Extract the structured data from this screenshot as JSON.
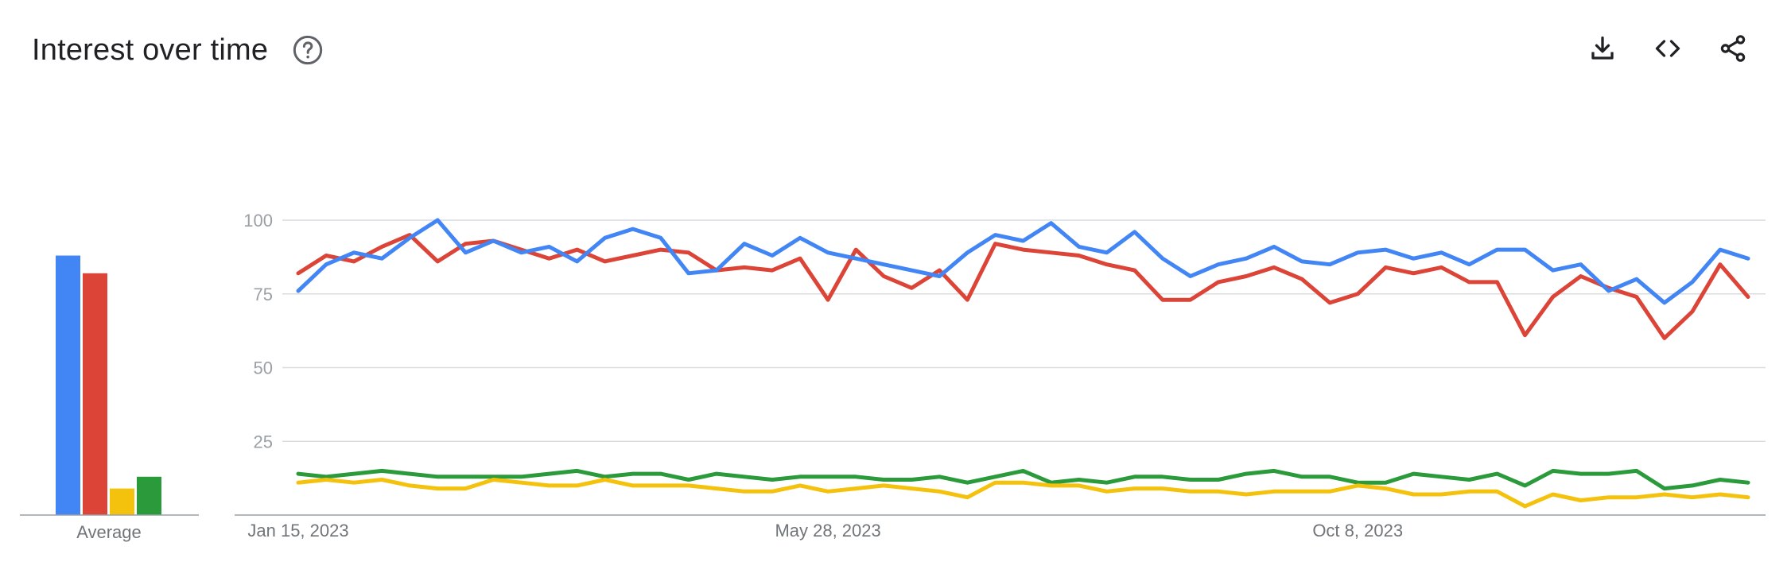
{
  "header": {
    "title": "Interest over time",
    "help_icon": "help-circle-icon"
  },
  "toolbar": {
    "icons": [
      "download-icon",
      "embed-code-icon",
      "share-icon"
    ]
  },
  "colors": {
    "blue": "#4285F4",
    "red": "#DB4437",
    "yellow": "#F4C20D",
    "green": "#2A9A3A",
    "grid": "#dadce0",
    "axis_text": "#9aa0a6",
    "label_text": "#70757a"
  },
  "chart_data": [
    {
      "type": "bar",
      "categories": [
        "Average"
      ],
      "series": [
        {
          "color": "#4285F4",
          "values": [
            88
          ]
        },
        {
          "color": "#DB4437",
          "values": [
            82
          ]
        },
        {
          "color": "#F4C20D",
          "values": [
            9
          ]
        },
        {
          "color": "#2A9A3A",
          "values": [
            13
          ]
        }
      ],
      "ylim": [
        0,
        100
      ]
    },
    {
      "type": "line",
      "x_start": "2023-01-15",
      "x_interval_days": 7,
      "x_tick_labels": [
        "Jan 15, 2023",
        "May 28, 2023",
        "Oct 8, 2023"
      ],
      "x_tick_indices": [
        0,
        19,
        38
      ],
      "y_ticks": [
        25,
        50,
        75,
        100
      ],
      "ylim": [
        0,
        100
      ],
      "grid": true,
      "series": [
        {
          "color": "#4285F4",
          "values": [
            76,
            85,
            89,
            87,
            94,
            100,
            89,
            93,
            89,
            91,
            86,
            94,
            97,
            94,
            82,
            83,
            92,
            88,
            94,
            89,
            87,
            85,
            83,
            81,
            89,
            95,
            93,
            99,
            91,
            89,
            96,
            87,
            81,
            85,
            87,
            91,
            86,
            85,
            89,
            90,
            87,
            89,
            85,
            90,
            90,
            83,
            85,
            76,
            80,
            72,
            79,
            90,
            87
          ]
        },
        {
          "color": "#DB4437",
          "values": [
            82,
            88,
            86,
            91,
            95,
            86,
            92,
            93,
            90,
            87,
            90,
            86,
            88,
            90,
            89,
            83,
            84,
            83,
            87,
            73,
            90,
            81,
            77,
            83,
            73,
            92,
            90,
            89,
            88,
            85,
            83,
            73,
            73,
            79,
            81,
            84,
            80,
            72,
            75,
            84,
            82,
            84,
            79,
            79,
            61,
            74,
            81,
            77,
            74,
            60,
            69,
            85,
            74
          ]
        },
        {
          "color": "#F4C20D",
          "values": [
            11,
            12,
            11,
            12,
            10,
            9,
            9,
            12,
            11,
            10,
            10,
            12,
            10,
            10,
            10,
            9,
            8,
            8,
            10,
            8,
            9,
            10,
            9,
            8,
            6,
            11,
            11,
            10,
            10,
            8,
            9,
            9,
            8,
            8,
            7,
            8,
            8,
            8,
            10,
            9,
            7,
            7,
            8,
            8,
            3,
            7,
            5,
            6,
            6,
            7,
            6,
            7,
            6
          ]
        },
        {
          "color": "#2A9A3A",
          "values": [
            14,
            13,
            14,
            15,
            14,
            13,
            13,
            13,
            13,
            14,
            15,
            13,
            14,
            14,
            12,
            14,
            13,
            12,
            13,
            13,
            13,
            12,
            12,
            13,
            11,
            13,
            15,
            11,
            12,
            11,
            13,
            13,
            12,
            12,
            14,
            15,
            13,
            13,
            11,
            11,
            14,
            13,
            12,
            14,
            10,
            15,
            14,
            14,
            15,
            9,
            10,
            12,
            11
          ]
        }
      ]
    }
  ],
  "avg_label": "Average"
}
